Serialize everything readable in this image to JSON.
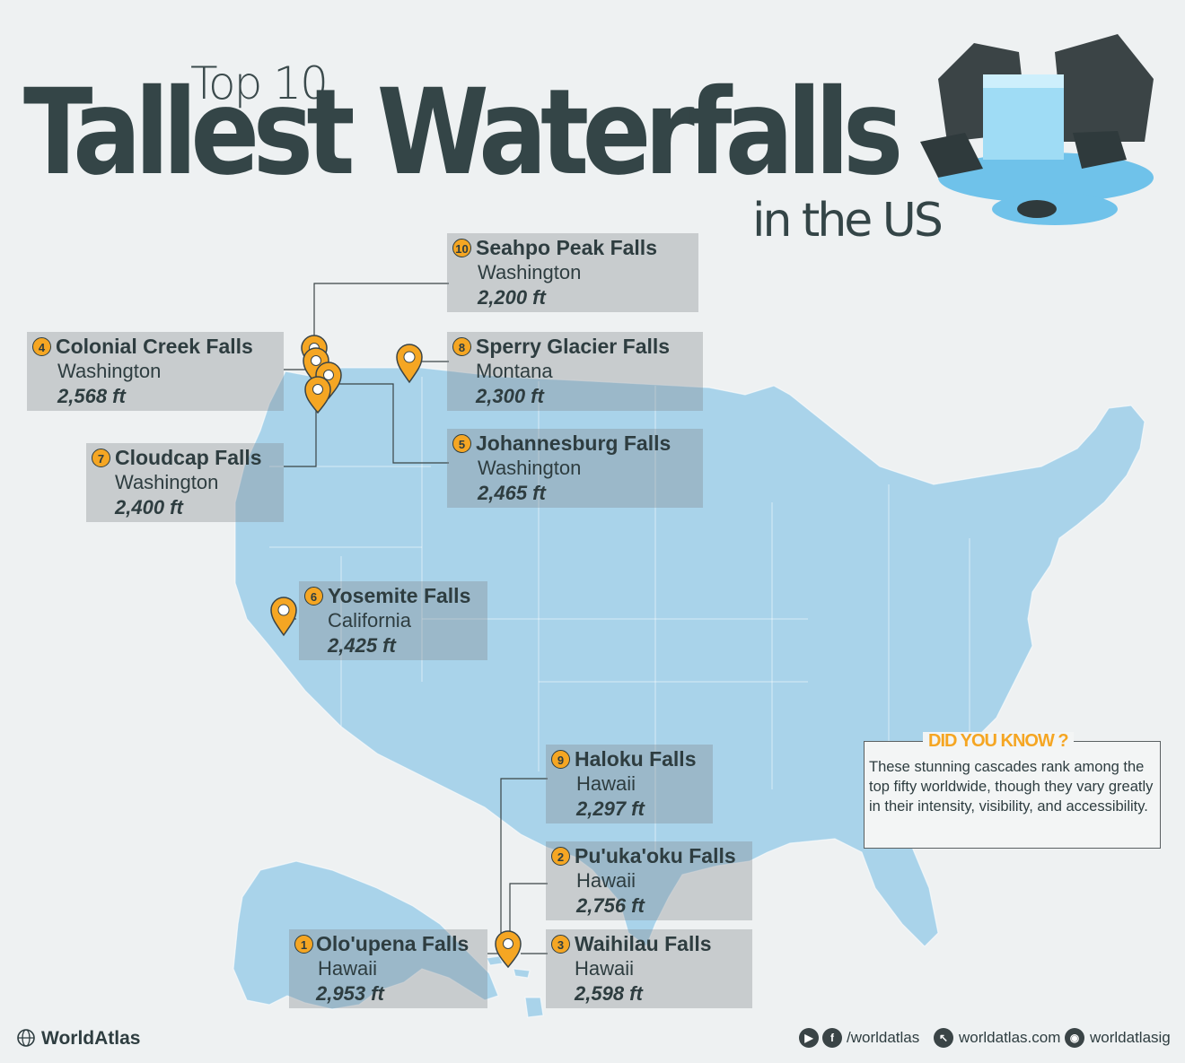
{
  "title": {
    "line1": "Top 10",
    "line2": "Tallest Waterfalls",
    "line3": "in the US"
  },
  "waterfalls": [
    {
      "rank": "10",
      "name": "Seahpo Peak Falls",
      "state": "Washington",
      "height": "2,200 ft"
    },
    {
      "rank": "4",
      "name": "Colonial Creek Falls",
      "state": "Washington",
      "height": "2,568 ft"
    },
    {
      "rank": "8",
      "name": "Sperry Glacier Falls",
      "state": "Montana",
      "height": "2,300 ft"
    },
    {
      "rank": "5",
      "name": "Johannesburg Falls",
      "state": "Washington",
      "height": "2,465 ft"
    },
    {
      "rank": "7",
      "name": "Cloudcap Falls",
      "state": "Washington",
      "height": "2,400 ft"
    },
    {
      "rank": "6",
      "name": "Yosemite Falls",
      "state": "California",
      "height": "2,425 ft"
    },
    {
      "rank": "9",
      "name": "Haloku Falls",
      "state": "Hawaii",
      "height": "2,297 ft"
    },
    {
      "rank": "2",
      "name": "Pu'uka'oku Falls",
      "state": "Hawaii",
      "height": "2,756 ft"
    },
    {
      "rank": "1",
      "name": "Olo'upena Falls",
      "state": "Hawaii",
      "height": "2,953 ft"
    },
    {
      "rank": "3",
      "name": "Waihilau Falls",
      "state": "Hawaii",
      "height": "2,598 ft"
    }
  ],
  "did_you_know": {
    "title": "DID YOU KNOW ?",
    "text": "These stunning cascades rank among the top fifty worldwide, though they vary greatly in their intensity, visibility, and accessibility."
  },
  "footer": {
    "brand": "WorldAtlas",
    "social": "/worldatlas",
    "website": "worldatlas.com",
    "instagram": "worldatlasig"
  },
  "colors": {
    "map_fill": "#a9d3ea",
    "pin": "#f5a623",
    "title": "#344547",
    "accent": "#f5a623"
  },
  "icons": {
    "pin": "map-pin-icon",
    "globe": "globe-icon",
    "youtube": "youtube-icon",
    "facebook": "facebook-icon",
    "cursor": "cursor-icon",
    "instagram": "instagram-icon"
  }
}
